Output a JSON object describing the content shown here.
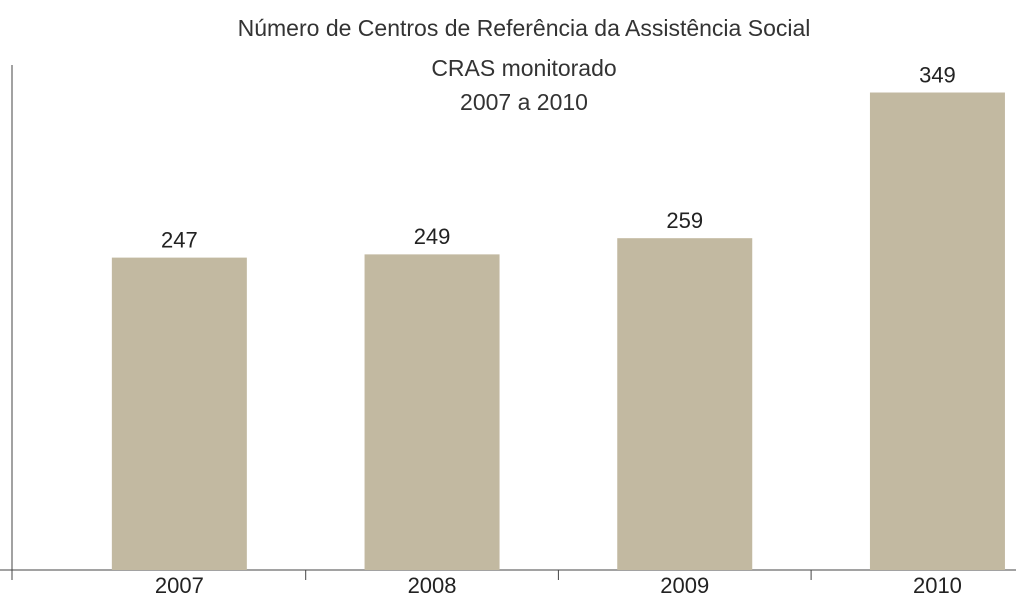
{
  "chart_data": {
    "type": "bar",
    "title": [
      "Número de Centros de Referência da Assistência Social",
      "CRAS monitorado",
      "2007 a 2010"
    ],
    "categories": [
      "2007",
      "2008",
      "2009",
      "2010"
    ],
    "values": [
      247,
      249,
      259,
      349
    ],
    "color": "#c2b9a1",
    "ylim": [
      54,
      366
    ]
  }
}
